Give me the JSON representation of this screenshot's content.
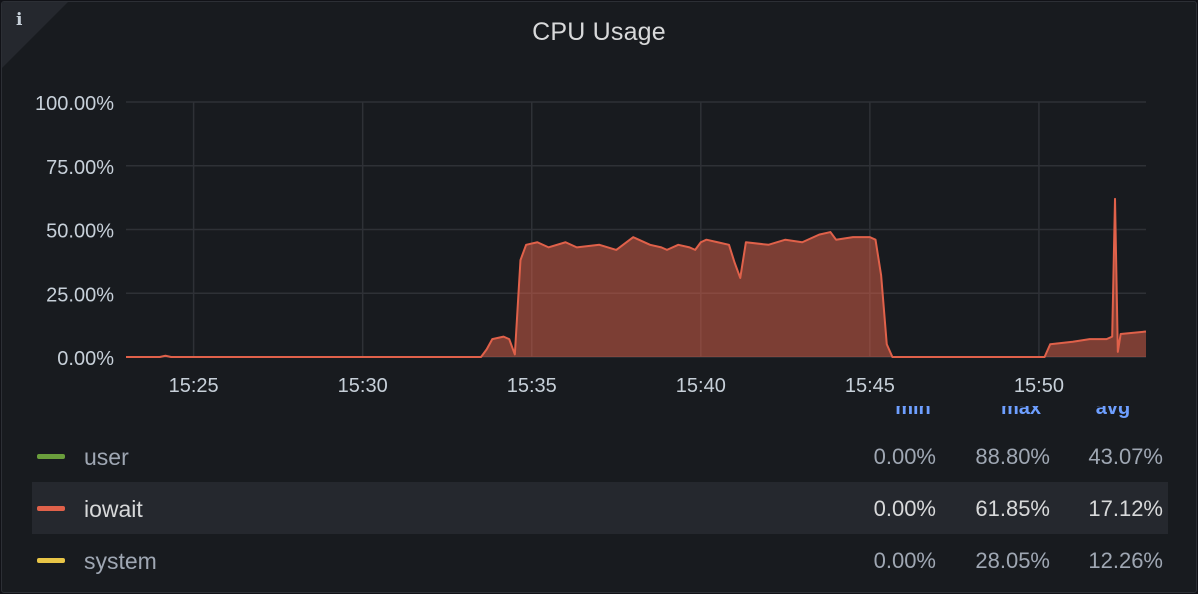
{
  "panel": {
    "title": "CPU Usage",
    "info_icon": "i"
  },
  "legend_headers": [
    "min",
    "max",
    "avg"
  ],
  "chart_data": {
    "type": "area",
    "title": "CPU Usage",
    "y_ticks": [
      "0.00%",
      "25.00%",
      "50.00%",
      "75.00%",
      "100.00%"
    ],
    "x_ticks": [
      "15:25",
      "15:30",
      "15:35",
      "15:40",
      "15:45",
      "15:50"
    ],
    "ylim": [
      0,
      100
    ],
    "xlim": [
      "15:23:00",
      "15:53:10"
    ],
    "grid": true,
    "series": [
      {
        "name": "iowait",
        "color": "#e0614a",
        "x": [
          "15:23:00",
          "15:24:00",
          "15:24:10",
          "15:24:20",
          "15:33:30",
          "15:33:40",
          "15:33:50",
          "15:34:10",
          "15:34:20",
          "15:34:30",
          "15:34:40",
          "15:34:50",
          "15:35:10",
          "15:35:30",
          "15:36:00",
          "15:36:20",
          "15:37:00",
          "15:37:30",
          "15:38:00",
          "15:38:30",
          "15:38:50",
          "15:39:00",
          "15:39:20",
          "15:39:40",
          "15:39:50",
          "15:40:00",
          "15:40:10",
          "15:40:30",
          "15:40:50",
          "15:41:00",
          "15:41:10",
          "15:41:20",
          "15:42:00",
          "15:42:30",
          "15:43:00",
          "15:43:30",
          "15:43:50",
          "15:44:00",
          "15:44:30",
          "15:45:00",
          "15:45:10",
          "15:45:20",
          "15:45:30",
          "15:45:40",
          "15:50:10",
          "15:50:20",
          "15:51:00",
          "15:51:30",
          "15:52:00",
          "15:52:10",
          "15:52:15",
          "15:52:20",
          "15:52:25",
          "15:53:10"
        ],
        "y": [
          0,
          0,
          0.5,
          0,
          0,
          3,
          7,
          8,
          7,
          1,
          38,
          44,
          45,
          43,
          45,
          43,
          44,
          42,
          47,
          44,
          43,
          42,
          44,
          43,
          42,
          45,
          46,
          45,
          44,
          37,
          31,
          45,
          44,
          46,
          45,
          48,
          49,
          46,
          47,
          47,
          46,
          32,
          5,
          0,
          0,
          5,
          6,
          7,
          7,
          8,
          62,
          2,
          9,
          10
        ]
      }
    ],
    "legend": [
      {
        "name": "user",
        "color": "#6a9e3c",
        "min": "0.00%",
        "max": "88.80%",
        "avg": "43.07%"
      },
      {
        "name": "iowait",
        "color": "#e0614a",
        "min": "0.00%",
        "max": "61.85%",
        "avg": "17.12%"
      },
      {
        "name": "system",
        "color": "#e8c547",
        "min": "0.00%",
        "max": "28.05%",
        "avg": "12.26%"
      }
    ]
  }
}
